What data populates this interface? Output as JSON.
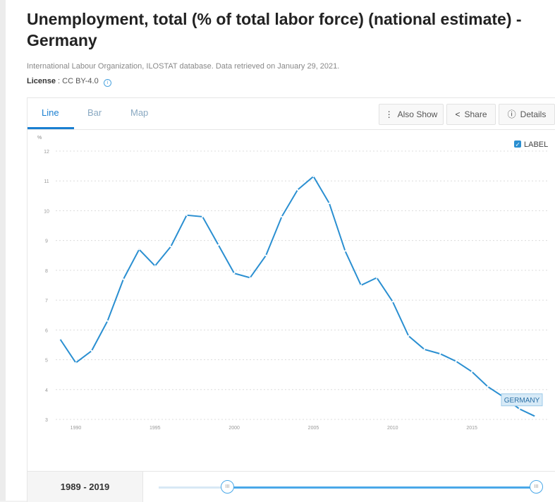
{
  "header": {
    "title": "Unemployment, total (% of total labor force) (national estimate) - Germany",
    "source": "International Labour Organization, ILOSTAT database. Data retrieved on January 29, 2021.",
    "license_label": "License",
    "license_value": ": CC BY-4.0",
    "info_icon": "i"
  },
  "tabs": [
    {
      "label": "Line",
      "active": true
    },
    {
      "label": "Bar",
      "active": false
    },
    {
      "label": "Map",
      "active": false
    }
  ],
  "toolbar": {
    "also_show_label": "Also Show",
    "also_show_icon": "⋮",
    "share_label": "Share",
    "share_icon": "<",
    "details_label": "Details",
    "details_icon": "ⓘ"
  },
  "label_toggle": {
    "text": "LABEL",
    "checked": true,
    "check_glyph": "✓"
  },
  "chart_data": {
    "type": "line",
    "ylabel": "%",
    "ylim": [
      3,
      12
    ],
    "yticks": [
      "3",
      "4",
      "5",
      "6",
      "7",
      "8",
      "9",
      "10",
      "11",
      "12"
    ],
    "xlim": [
      1989,
      2019
    ],
    "xticks": [
      "1990",
      "1995",
      "2000",
      "2005",
      "2010",
      "2015"
    ],
    "grid": true,
    "series": [
      {
        "name": "GERMANY",
        "color": "#2a8fd1",
        "x": [
          1989,
          1990,
          1991,
          1992,
          1993,
          1994,
          1995,
          1996,
          1997,
          1998,
          1999,
          2000,
          2001,
          2002,
          2003,
          2004,
          2005,
          2006,
          2007,
          2008,
          2009,
          2010,
          2011,
          2012,
          2013,
          2014,
          2015,
          2016,
          2017,
          2018,
          2019
        ],
        "y": [
          5.7,
          4.9,
          5.3,
          6.3,
          7.7,
          8.7,
          8.15,
          8.8,
          9.85,
          9.8,
          8.85,
          7.9,
          7.75,
          8.5,
          9.8,
          10.7,
          11.15,
          10.25,
          8.65,
          7.5,
          7.75,
          6.95,
          5.8,
          5.35,
          5.2,
          4.95,
          4.6,
          4.1,
          3.75,
          3.35,
          3.1
        ]
      }
    ],
    "end_label": "GERMANY",
    "accent_color": "#2a8fd1"
  },
  "footer": {
    "range_label": "1989 - 2019",
    "slider_start_year": 1989,
    "slider_selected_start": 1989,
    "slider_selected_end": 2019,
    "handle_glyph": "III"
  }
}
